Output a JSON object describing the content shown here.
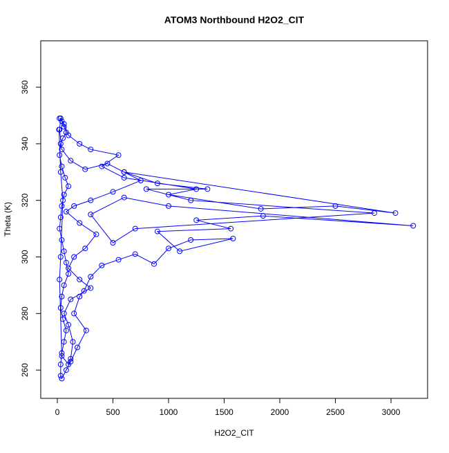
{
  "chart_data": {
    "type": "line",
    "marker": "circle",
    "title": "ATOM3 Northbound H2O2_CIT",
    "x_label": "H2O2_CIT",
    "y_label": "Theta (K)",
    "color": "#0000ff",
    "xlim": [
      -149,
      3329
    ],
    "ylim": [
      250,
      376.4
    ],
    "xticks": [
      0,
      500,
      1000,
      1500,
      2000,
      2500,
      3000
    ],
    "yticks": [
      260,
      280,
      300,
      320,
      340,
      360
    ],
    "x": [
      20,
      40,
      60,
      80,
      50,
      30,
      20,
      40,
      70,
      100,
      60,
      40,
      30,
      20,
      40,
      60,
      80,
      100,
      60,
      40,
      30,
      50,
      80,
      60,
      40,
      30,
      30,
      40,
      80,
      120,
      180,
      260,
      150,
      200,
      240,
      300,
      400,
      550,
      700,
      870,
      1000,
      1200,
      1580,
      1100,
      900,
      1560,
      1250,
      1850,
      3200,
      1000,
      600,
      300,
      500,
      700,
      2850,
      1200,
      800,
      1350,
      900,
      600,
      3040,
      2500,
      1830,
      1000,
      1250,
      600,
      400,
      550,
      300,
      200,
      100,
      60,
      30,
      20,
      40,
      120,
      250,
      450,
      600,
      750,
      500,
      300,
      150,
      80,
      200,
      350,
      250,
      150,
      100,
      200,
      300,
      120,
      60,
      100,
      140,
      120,
      100,
      40,
      20,
      30,
      50,
      30,
      15
    ],
    "values": [
      349,
      348,
      346,
      344,
      342,
      340,
      336,
      332,
      328,
      325,
      322,
      318,
      314,
      310,
      306,
      302,
      298,
      294,
      290,
      286,
      282,
      278,
      274,
      270,
      266,
      262,
      258,
      257,
      260,
      263,
      268,
      274,
      280,
      286,
      288,
      293,
      297,
      299,
      301,
      297.5,
      303,
      306,
      306.5,
      302,
      309,
      310,
      313,
      314.5,
      311,
      318,
      321,
      315,
      305,
      310,
      315.5,
      320,
      324,
      324,
      326,
      330,
      315.5,
      318,
      317,
      322,
      324,
      328,
      332,
      336,
      338,
      340,
      343,
      347,
      349,
      345,
      338,
      334,
      331,
      333,
      330,
      327,
      323,
      320,
      318,
      316,
      312,
      308,
      303,
      300,
      296,
      292,
      289,
      285,
      280,
      276,
      270,
      264,
      262,
      265,
      292,
      300,
      320,
      330,
      345
    ]
  }
}
